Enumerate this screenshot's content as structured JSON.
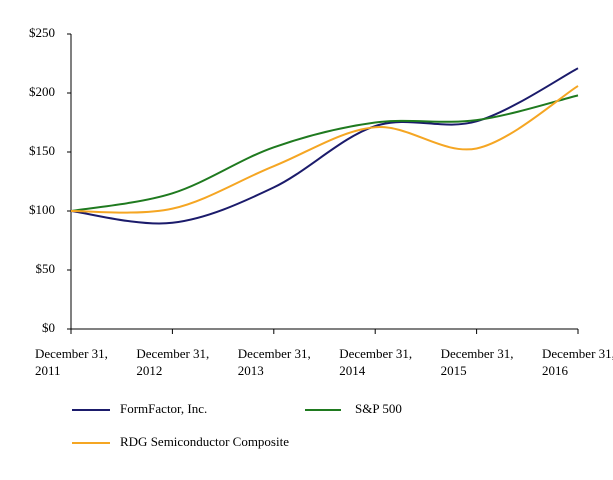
{
  "chart_data": {
    "type": "line",
    "categories": [
      "December 31, 2011",
      "December 31, 2012",
      "December 31, 2013",
      "December 31, 2014",
      "December 31, 2015",
      "December 31, 2016"
    ],
    "series": [
      {
        "name": "FormFactor, Inc.",
        "color": "#1b1b6b",
        "values": [
          100,
          90,
          120,
          172,
          176,
          221
        ]
      },
      {
        "name": "S&P 500",
        "color": "#1f7a1f",
        "values": [
          100,
          115,
          154,
          175,
          177,
          198
        ]
      },
      {
        "name": "RDG Semiconductor Composite",
        "color": "#f5a623",
        "values": [
          100,
          102,
          138,
          171,
          153,
          206
        ]
      }
    ],
    "ylim": [
      0,
      250
    ],
    "yticks": [
      {
        "value": 0,
        "label": "$0"
      },
      {
        "value": 50,
        "label": "$50"
      },
      {
        "value": 100,
        "label": "$100"
      },
      {
        "value": 150,
        "label": "$150"
      },
      {
        "value": 200,
        "label": "$200"
      },
      {
        "value": 250,
        "label": "$250"
      }
    ]
  }
}
